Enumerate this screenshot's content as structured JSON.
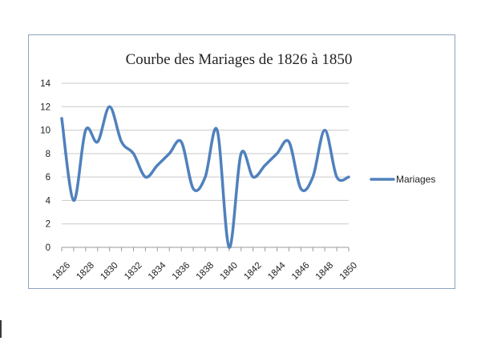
{
  "chart_data": {
    "type": "line",
    "title": "Courbe des Mariages de 1826 à 1850",
    "xlabel": "",
    "ylabel": "",
    "x": [
      1826,
      1827,
      1828,
      1829,
      1830,
      1831,
      1832,
      1833,
      1834,
      1835,
      1836,
      1837,
      1838,
      1839,
      1840,
      1841,
      1842,
      1843,
      1844,
      1845,
      1846,
      1847,
      1848,
      1849,
      1850
    ],
    "x_tick_labels": [
      "1826",
      "1828",
      "1830",
      "1832",
      "1834",
      "1836",
      "1838",
      "1840",
      "1842",
      "1844",
      "1846",
      "1848",
      "1850"
    ],
    "y_tick_labels": [
      "0",
      "2",
      "4",
      "6",
      "8",
      "10",
      "12",
      "14"
    ],
    "ylim": [
      0,
      14
    ],
    "grid": true,
    "legend_position": "right",
    "series": [
      {
        "name": "Mariages",
        "values": [
          11,
          4,
          10,
          9,
          12,
          9,
          8,
          6,
          7,
          8,
          9,
          5,
          6,
          10,
          0,
          8,
          6,
          7,
          8,
          9,
          5,
          6,
          10,
          6,
          6
        ],
        "color": "#4f81bd"
      }
    ]
  }
}
